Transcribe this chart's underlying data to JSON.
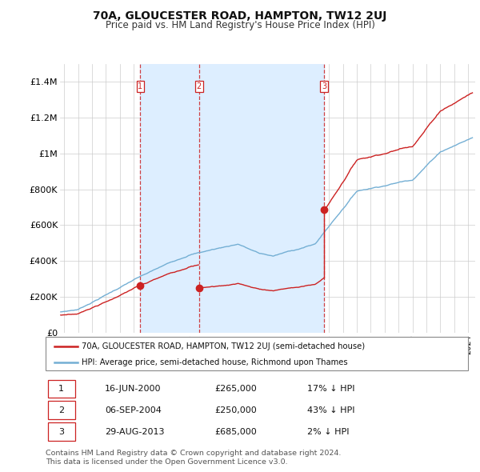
{
  "title": "70A, GLOUCESTER ROAD, HAMPTON, TW12 2UJ",
  "subtitle": "Price paid vs. HM Land Registry's House Price Index (HPI)",
  "ylabel_ticks": [
    "£0",
    "£200K",
    "£400K",
    "£600K",
    "£800K",
    "£1M",
    "£1.2M",
    "£1.4M"
  ],
  "ylim": [
    0,
    1500000
  ],
  "xlim_start": 1994.7,
  "xlim_end": 2024.5,
  "hpi_color": "#74afd4",
  "price_color": "#cc2222",
  "vline_color": "#cc2222",
  "shade_color": "#ddeeff",
  "transaction_dates": [
    2000.46,
    2004.68,
    2013.66
  ],
  "transaction_prices": [
    265000,
    250000,
    685000
  ],
  "transaction_labels": [
    "1",
    "2",
    "3"
  ],
  "legend_label_price": "70A, GLOUCESTER ROAD, HAMPTON, TW12 2UJ (semi-detached house)",
  "legend_label_hpi": "HPI: Average price, semi-detached house, Richmond upon Thames",
  "table_rows": [
    [
      "1",
      "16-JUN-2000",
      "£265,000",
      "17% ↓ HPI"
    ],
    [
      "2",
      "06-SEP-2004",
      "£250,000",
      "43% ↓ HPI"
    ],
    [
      "3",
      "29-AUG-2013",
      "£685,000",
      "2% ↓ HPI"
    ]
  ],
  "footnote": "Contains HM Land Registry data © Crown copyright and database right 2024.\nThis data is licensed under the Open Government Licence v3.0.",
  "background_color": "#ffffff",
  "grid_color": "#cccccc"
}
